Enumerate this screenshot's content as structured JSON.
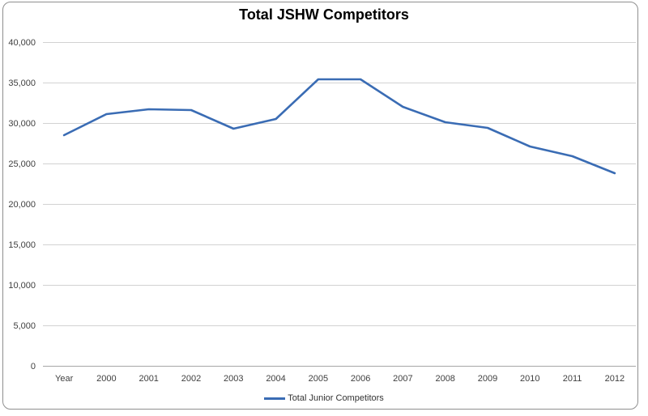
{
  "chart": {
    "title": "Total JSHW Competitors",
    "legend": "Total Junior Competitors"
  },
  "chart_data": {
    "type": "line",
    "title": "Total JSHW Competitors",
    "categories": [
      "Year",
      "2000",
      "2001",
      "2002",
      "2003",
      "2004",
      "2005",
      "2006",
      "2007",
      "2008",
      "2009",
      "2010",
      "2011",
      "2012"
    ],
    "series": [
      {
        "name": "Total Junior Competitors",
        "values": [
          28500,
          31100,
          31700,
          31600,
          29300,
          30500,
          35400,
          35400,
          32000,
          30100,
          29400,
          27100,
          25900,
          23800
        ],
        "color": "#3a6cb4"
      }
    ],
    "xlabel": "",
    "ylabel": "",
    "ylim": [
      0,
      40000
    ],
    "ytick_step": 5000,
    "ytick_labels": [
      "0",
      "5,000",
      "10,000",
      "15,000",
      "20,000",
      "25,000",
      "30,000",
      "35,000",
      "40,000"
    ],
    "grid": true,
    "grid_color": "#d2d2d2",
    "axis_color": "#a6a6a6",
    "legend_position": "bottom-center",
    "background": "#ffffff",
    "border_color": "#8f8f8f"
  }
}
